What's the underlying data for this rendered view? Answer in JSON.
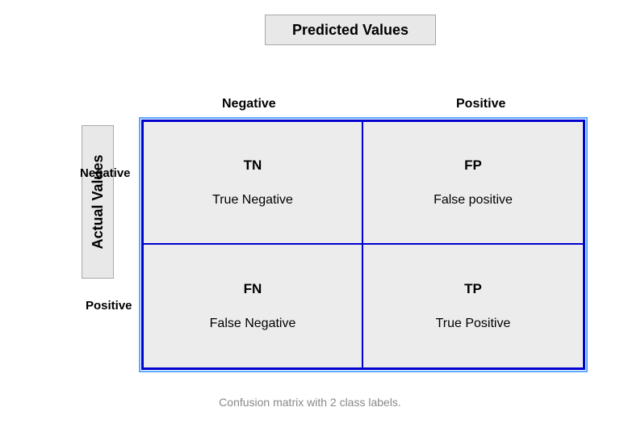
{
  "type": "confusion-matrix",
  "caption": "Confusion matrix with 2 class labels.",
  "axes": {
    "predicted_title": "Predicted Values",
    "actual_title": "Actual Values",
    "column_headers": [
      "Negative",
      "Positive"
    ],
    "row_headers": [
      "Negative",
      "Positive"
    ]
  },
  "cells": {
    "tn": {
      "abbrev": "TN",
      "full": "True Negative"
    },
    "fp": {
      "abbrev": "FP",
      "full": "False positive"
    },
    "fn": {
      "abbrev": "FN",
      "full": "False Negative"
    },
    "tp": {
      "abbrev": "TP",
      "full": "True Positive"
    }
  },
  "style": {
    "title_box_bg": "#e8e8e8",
    "title_box_border": "#a8a8a8",
    "matrix_border_color": "#0000d0",
    "matrix_outline_color": "#5aa8ff",
    "cell_bg": "#ececec",
    "caption_color": "#888888",
    "text_color": "#000000",
    "title_fontsize": 18,
    "header_fontsize": 16,
    "abbrev_fontsize": 17,
    "full_fontsize": 16,
    "caption_fontsize": 14,
    "matrix_width": 550,
    "matrix_height": 310,
    "page_bg": "#ffffff"
  }
}
